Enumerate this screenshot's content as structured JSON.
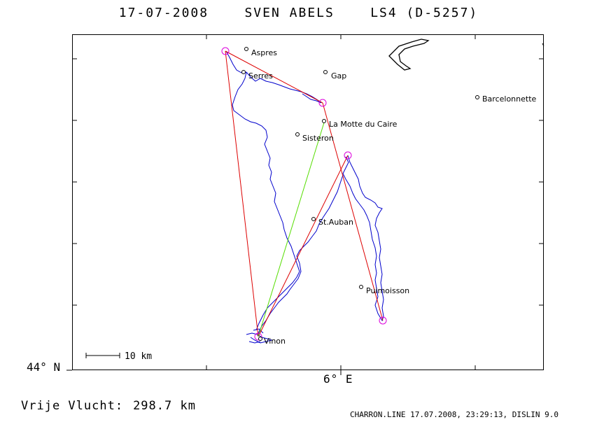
{
  "header": {
    "date": "17-07-2008",
    "pilot": "SVEN ABELS",
    "glider": "LS4 (D-5257)"
  },
  "axes": {
    "lat_label": "44° N",
    "lon_label": "6° E"
  },
  "scale_bar": {
    "label": "10 km"
  },
  "footer": {
    "distance_label": "Vrije Vlucht:",
    "distance_value": "298.7 km",
    "generator": "CHARRON.LINE 17.07.2008, 23:29:13, DISLIN 9.0"
  },
  "towns": [
    {
      "name": "Aspres"
    },
    {
      "name": "Serres"
    },
    {
      "name": "Gap"
    },
    {
      "name": "Barcelonnette"
    },
    {
      "name": "La Motte du Caire"
    },
    {
      "name": "Sisteron"
    },
    {
      "name": "St.Auban"
    },
    {
      "name": "Puimoisson"
    },
    {
      "name": "Vinon"
    }
  ],
  "colors": {
    "track": "#0000cc",
    "task_line": "#dd0000",
    "closing_line": "#55dd00",
    "turnpoint": "#dd00dd",
    "lake": "#000000"
  }
}
